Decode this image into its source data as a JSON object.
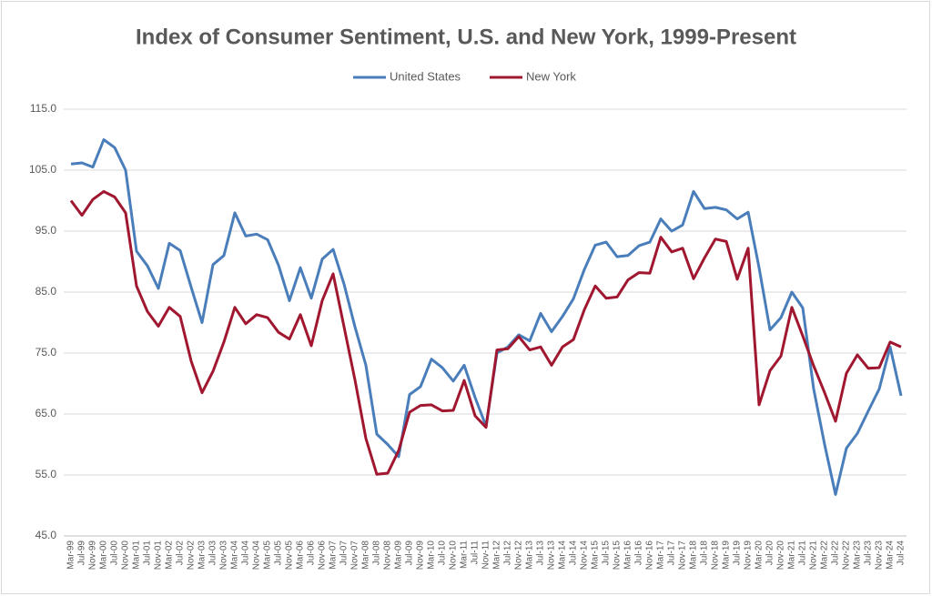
{
  "chart_data": {
    "type": "line",
    "title": "Index of Consumer Sentiment, U.S. and New York, 1999-Present",
    "categories": [
      "Mar-99",
      "Jul-99",
      "Nov-99",
      "Mar-00",
      "Jul-00",
      "Nov-00",
      "Mar-01",
      "Jul-01",
      "Nov-01",
      "Mar-02",
      "Jul-02",
      "Nov-02",
      "Mar-03",
      "Jul-03",
      "Nov-03",
      "Mar-04",
      "Jul-04",
      "Nov-04",
      "Mar-05",
      "Jul-05",
      "Nov-05",
      "Mar-06",
      "Jul-06",
      "Nov-06",
      "Mar-07",
      "Jul-07",
      "Nov-07",
      "Mar-08",
      "Jul-08",
      "Nov-08",
      "Mar-09",
      "Jul-09",
      "Nov-09",
      "Mar-10",
      "Jul-10",
      "Nov-10",
      "Mar-11",
      "Jul-11",
      "Nov-11",
      "Mar-12",
      "Jul-12",
      "Nov-12",
      "Mar-13",
      "Jul-13",
      "Nov-13",
      "Mar-14",
      "Jul-14",
      "Nov-14",
      "Mar-15",
      "Jul-15",
      "Nov-15",
      "Mar-16",
      "Jul-16",
      "Nov-16",
      "Mar-17",
      "Jul-17",
      "Nov-17",
      "Mar-18",
      "Jul-18",
      "Nov-18",
      "Mar-19",
      "Jul-19",
      "Nov-19",
      "Mar-20",
      "Jul-20",
      "Nov-20",
      "Mar-21",
      "Jul-21",
      "Nov-21",
      "Mar-22",
      "Jul-22",
      "Nov-22",
      "Mar-23",
      "Jul-23",
      "Nov-23",
      "Mar-24",
      "Jul-24"
    ],
    "series": [
      {
        "name": "United States",
        "color": "#4a7ebb",
        "values": [
          106,
          106.2,
          105.5,
          110,
          108.7,
          105,
          91.7,
          89.3,
          85.6,
          93,
          91.8,
          85.8,
          80,
          89.5,
          91,
          98,
          94.2,
          94.5,
          93.6,
          89.4,
          83.6,
          89,
          84,
          90.4,
          92,
          86.3,
          79.3,
          73,
          61.7,
          60,
          58,
          68.2,
          69.5,
          74,
          72.6,
          70.4,
          73,
          67.7,
          63,
          75,
          76,
          78,
          77,
          81.5,
          78.5,
          81,
          83.9,
          88.7,
          92.7,
          93.2,
          90.8,
          91,
          92.6,
          93.2,
          97,
          95,
          96,
          101.5,
          98.7,
          98.9,
          98.5,
          97,
          98.1,
          89,
          78.8,
          80.8,
          85,
          82.4,
          69.1,
          60,
          51.8,
          59.4,
          61.8,
          65.5,
          69.1,
          76,
          68
        ]
      },
      {
        "name": "New York",
        "color": "#a0172f",
        "values": [
          100,
          97.6,
          100.2,
          101.5,
          100.6,
          98,
          86,
          81.8,
          79.4,
          82.5,
          81,
          73.7,
          68.5,
          72,
          76.8,
          82.5,
          79.8,
          81.3,
          80.8,
          78.4,
          77.3,
          81.3,
          76.2,
          83.6,
          88,
          79.3,
          70.6,
          61,
          55.1,
          55.3,
          59,
          65.3,
          66.4,
          66.5,
          65.5,
          65.6,
          70.5,
          64.7,
          62.8,
          75.5,
          75.7,
          77.7,
          75.5,
          76,
          73,
          76,
          77.2,
          82.1,
          86,
          84,
          84.2,
          87,
          88.2,
          88.1,
          94,
          91.6,
          92.2,
          87.2,
          90.6,
          93.7,
          93.3,
          87.1,
          92.2,
          66.5,
          72.1,
          74.5,
          82.5,
          77.8,
          72.9,
          68.5,
          63.8,
          71.7,
          74.7,
          72.5,
          72.6,
          76.8,
          76
        ]
      }
    ],
    "ylim": [
      45,
      115
    ],
    "yticks": [
      {
        "value": 45,
        "label": "45.0"
      },
      {
        "value": 55,
        "label": "55.0"
      },
      {
        "value": 65,
        "label": "65.0"
      },
      {
        "value": 75,
        "label": "75.0"
      },
      {
        "value": 85,
        "label": "85.0"
      },
      {
        "value": 95,
        "label": "95.0"
      },
      {
        "value": 105,
        "label": "105.0"
      },
      {
        "value": 115,
        "label": "115.0"
      }
    ],
    "grid": true,
    "legend": "top"
  }
}
